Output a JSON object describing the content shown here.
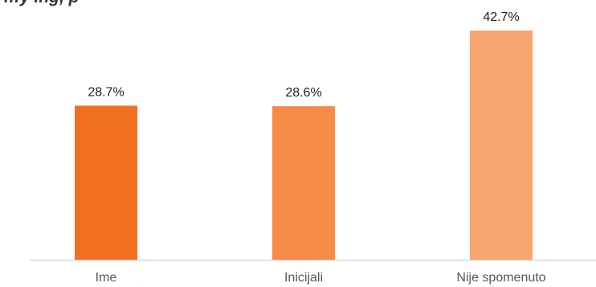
{
  "chart_data": {
    "type": "bar",
    "title": "…y ing, p",
    "categories": [
      "Ime",
      "Inicijali",
      "Nije spomenuto"
    ],
    "values": [
      28.7,
      28.6,
      42.7
    ],
    "value_labels": [
      "28.7%",
      "28.6%",
      "42.7%"
    ],
    "unit": "%",
    "colors": [
      "#f37021",
      "#f68b47",
      "#f8a571"
    ],
    "ylim": [
      0,
      45
    ],
    "grid": false,
    "legend": "none"
  }
}
